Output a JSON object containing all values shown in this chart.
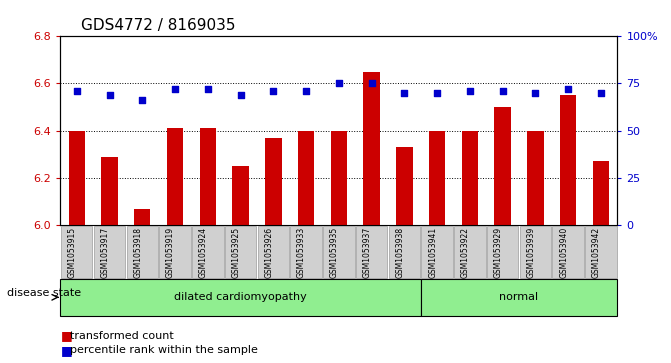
{
  "title": "GDS4772 / 8169035",
  "samples": [
    "GSM1053915",
    "GSM1053917",
    "GSM1053918",
    "GSM1053919",
    "GSM1053924",
    "GSM1053925",
    "GSM1053926",
    "GSM1053933",
    "GSM1053935",
    "GSM1053937",
    "GSM1053938",
    "GSM1053941",
    "GSM1053922",
    "GSM1053929",
    "GSM1053939",
    "GSM1053940",
    "GSM1053942"
  ],
  "bar_values": [
    6.4,
    6.29,
    6.07,
    6.41,
    6.41,
    6.25,
    6.37,
    6.4,
    6.4,
    6.65,
    6.33,
    6.4,
    6.4,
    6.5,
    6.4,
    6.55,
    6.27
  ],
  "percentile_values": [
    71,
    69,
    66,
    72,
    72,
    69,
    71,
    71,
    75,
    75,
    70,
    70,
    71,
    71,
    70,
    72,
    70
  ],
  "bar_color": "#cc0000",
  "dot_color": "#0000cc",
  "ylim_left": [
    6.0,
    6.8
  ],
  "ylim_right": [
    0,
    100
  ],
  "yticks_left": [
    6.0,
    6.2,
    6.4,
    6.6,
    6.8
  ],
  "yticks_right": [
    0,
    25,
    50,
    75,
    100
  ],
  "ytick_labels_right": [
    "0",
    "25",
    "50",
    "75",
    "100%"
  ],
  "grid_values": [
    6.2,
    6.4,
    6.6
  ],
  "group1_label": "dilated cardiomyopathy",
  "group2_label": "normal",
  "group1_count": 11,
  "group2_count": 6,
  "disease_state_label": "disease state",
  "legend_bar_label": "transformed count",
  "legend_dot_label": "percentile rank within the sample",
  "bg_plot": "#ffffff",
  "bg_group": "#90ee90",
  "title_fontsize": 11,
  "tick_fontsize": 8,
  "label_fontsize": 9
}
